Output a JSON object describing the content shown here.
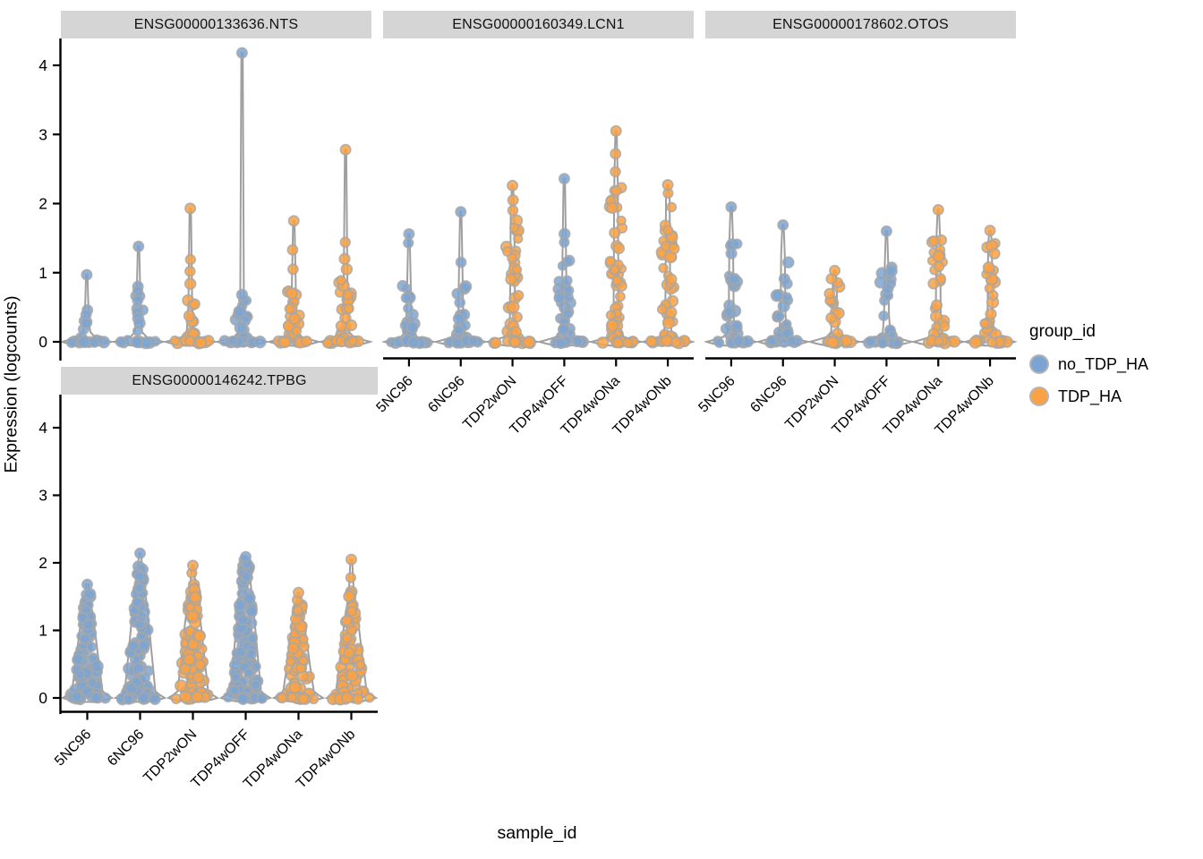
{
  "legend": {
    "title": "group_id",
    "entries": [
      {
        "label": "no_TDP_HA",
        "color": "#7CA4D2"
      },
      {
        "label": "TDP_HA",
        "color": "#FAA244"
      }
    ]
  },
  "colors": {
    "group_blue": "#7CA4D2",
    "group_orange": "#FAA244",
    "strip_background": "#D5D5D5",
    "violin_outline": "#8E8E8E",
    "point_outline": "#A6A6A6",
    "axis_line": "#000000"
  },
  "chart_data": {
    "type": "violin",
    "title": "",
    "x_label": "sample_id",
    "y_label": "Expression (logcounts)",
    "y_ticks": [
      0,
      1,
      2,
      3,
      4
    ],
    "y_range": [
      -0.2,
      4.4
    ],
    "legend_position": "right",
    "grid": false,
    "categories": [
      "5NC96",
      "6NC96",
      "TDP2wON",
      "TDP4wOFF",
      "TDP4wONa",
      "TDP4wONb"
    ],
    "group_of_sample": {
      "5NC96": "no_TDP_HA",
      "6NC96": "no_TDP_HA",
      "TDP2wON": "TDP_HA",
      "TDP4wOFF": "no_TDP_HA",
      "TDP4wONa": "TDP_HA",
      "TDP4wONb": "TDP_HA"
    },
    "facets": [
      {
        "title": "ENSG00000133636.NTS",
        "violins": [
          {
            "sample": "5NC96",
            "group": "no_TDP_HA",
            "max": 0.97,
            "stem_points": [
              0.46,
              0.39,
              0.27
            ],
            "dense_top": 0.4,
            "dense_n": 4,
            "zero_row_n": 11,
            "style": "spike"
          },
          {
            "sample": "6NC96",
            "group": "no_TDP_HA",
            "max": 1.38,
            "stem_points": [
              0.8,
              0.73,
              0.66,
              0.6,
              0.42,
              0.34,
              0.27
            ],
            "dense_top": 0.65,
            "dense_n": 4,
            "zero_row_n": 11,
            "style": "spike"
          },
          {
            "sample": "TDP2wON",
            "group": "TDP_HA",
            "max": 1.93,
            "stem_points": [
              1.19,
              1.02,
              0.84
            ],
            "dense_top": 0.58,
            "dense_n": 12,
            "zero_row_n": 11,
            "style": "spike"
          },
          {
            "sample": "TDP4wOFF",
            "group": "no_TDP_HA",
            "max": 4.18,
            "stem_points": [
              0.68
            ],
            "dense_top": 0.55,
            "dense_n": 17,
            "zero_row_n": 12,
            "style": "spike"
          },
          {
            "sample": "TDP4wONa",
            "group": "TDP_HA",
            "max": 1.75,
            "stem_points": [
              1.33,
              1.05
            ],
            "dense_top": 0.9,
            "dense_n": 22,
            "zero_row_n": 11,
            "style": "spike"
          },
          {
            "sample": "TDP4wONb",
            "group": "TDP_HA",
            "max": 2.78,
            "stem_points": [
              1.44,
              1.2,
              1.05
            ],
            "dense_top": 0.85,
            "dense_n": 22,
            "zero_row_n": 11,
            "style": "spike"
          }
        ]
      },
      {
        "title": "ENSG00000160349.LCN1",
        "violins": [
          {
            "sample": "5NC96",
            "group": "no_TDP_HA",
            "max": 1.56,
            "stem_points": [
              1.43
            ],
            "dense_top": 0.8,
            "dense_n": 17,
            "zero_row_n": 12,
            "style": "spike"
          },
          {
            "sample": "6NC96",
            "group": "no_TDP_HA",
            "max": 1.88,
            "stem_points": [
              1.15
            ],
            "dense_top": 0.95,
            "dense_n": 19,
            "zero_row_n": 12,
            "style": "spike"
          },
          {
            "sample": "TDP2wON",
            "group": "TDP_HA",
            "max": 2.26,
            "stem_points": [
              2.05,
              1.9
            ],
            "dense_top": 1.75,
            "dense_n": 34,
            "zero_row_n": 12,
            "style": "spike"
          },
          {
            "sample": "TDP4wOFF",
            "group": "no_TDP_HA",
            "max": 2.36,
            "stem_points": [
              1.56,
              1.44
            ],
            "dense_top": 1.15,
            "dense_n": 26,
            "zero_row_n": 12,
            "style": "spike"
          },
          {
            "sample": "TDP4wONa",
            "group": "TDP_HA",
            "max": 3.05,
            "stem_points": [
              2.72,
              2.46
            ],
            "dense_top": 2.2,
            "dense_n": 44,
            "zero_row_n": 12,
            "style": "spike"
          },
          {
            "sample": "TDP4wONb",
            "group": "TDP_HA",
            "max": 2.27,
            "stem_points": [
              2.15
            ],
            "dense_top": 2.05,
            "dense_n": 40,
            "zero_row_n": 12,
            "style": "spike"
          }
        ]
      },
      {
        "title": "ENSG00000178602.OTOS",
        "violins": [
          {
            "sample": "5NC96",
            "group": "no_TDP_HA",
            "max": 1.95,
            "stem_points": [],
            "dense_top": 1.45,
            "dense_n": 23,
            "zero_row_n": 11,
            "style": "spike"
          },
          {
            "sample": "6NC96",
            "group": "no_TDP_HA",
            "max": 1.69,
            "stem_points": [],
            "dense_top": 1.25,
            "dense_n": 21,
            "zero_row_n": 11,
            "style": "spike"
          },
          {
            "sample": "TDP2wON",
            "group": "TDP_HA",
            "max": 1.03,
            "stem_points": [],
            "dense_top": 0.9,
            "dense_n": 15,
            "zero_row_n": 11,
            "style": "spike"
          },
          {
            "sample": "TDP4wOFF",
            "group": "no_TDP_HA",
            "max": 1.6,
            "stem_points": [],
            "dense_top": 1.05,
            "dense_n": 17,
            "zero_row_n": 11,
            "style": "spike"
          },
          {
            "sample": "TDP4wONa",
            "group": "TDP_HA",
            "max": 1.91,
            "stem_points": [],
            "dense_top": 1.5,
            "dense_n": 27,
            "zero_row_n": 11,
            "style": "spike"
          },
          {
            "sample": "TDP4wONb",
            "group": "TDP_HA",
            "max": 1.61,
            "stem_points": [],
            "dense_top": 1.42,
            "dense_n": 25,
            "zero_row_n": 11,
            "style": "spike"
          }
        ]
      },
      {
        "title": "ENSG00000146242.TPBG",
        "violins": [
          {
            "sample": "5NC96",
            "group": "no_TDP_HA",
            "max": 1.68,
            "stem_points": [],
            "dense_top": 1.5,
            "dense_n": 85,
            "zero_row_n": 11,
            "style": "cone"
          },
          {
            "sample": "6NC96",
            "group": "no_TDP_HA",
            "max": 2.14,
            "stem_points": [],
            "dense_top": 1.9,
            "dense_n": 100,
            "zero_row_n": 11,
            "style": "cone"
          },
          {
            "sample": "TDP2wON",
            "group": "TDP_HA",
            "max": 1.96,
            "stem_points": [
              1.85
            ],
            "dense_top": 1.7,
            "dense_n": 100,
            "zero_row_n": 11,
            "style": "cone"
          },
          {
            "sample": "TDP4wOFF",
            "group": "no_TDP_HA",
            "max": 2.09,
            "stem_points": [],
            "dense_top": 2.0,
            "dense_n": 120,
            "zero_row_n": 11,
            "style": "cone"
          },
          {
            "sample": "TDP4wONa",
            "group": "TDP_HA",
            "max": 1.56,
            "stem_points": [
              1.45
            ],
            "dense_top": 1.35,
            "dense_n": 65,
            "zero_row_n": 11,
            "style": "cone"
          },
          {
            "sample": "TDP4wONb",
            "group": "TDP_HA",
            "max": 2.05,
            "stem_points": [
              1.78
            ],
            "dense_top": 1.55,
            "dense_n": 72,
            "zero_row_n": 11,
            "style": "cone"
          }
        ]
      }
    ]
  }
}
